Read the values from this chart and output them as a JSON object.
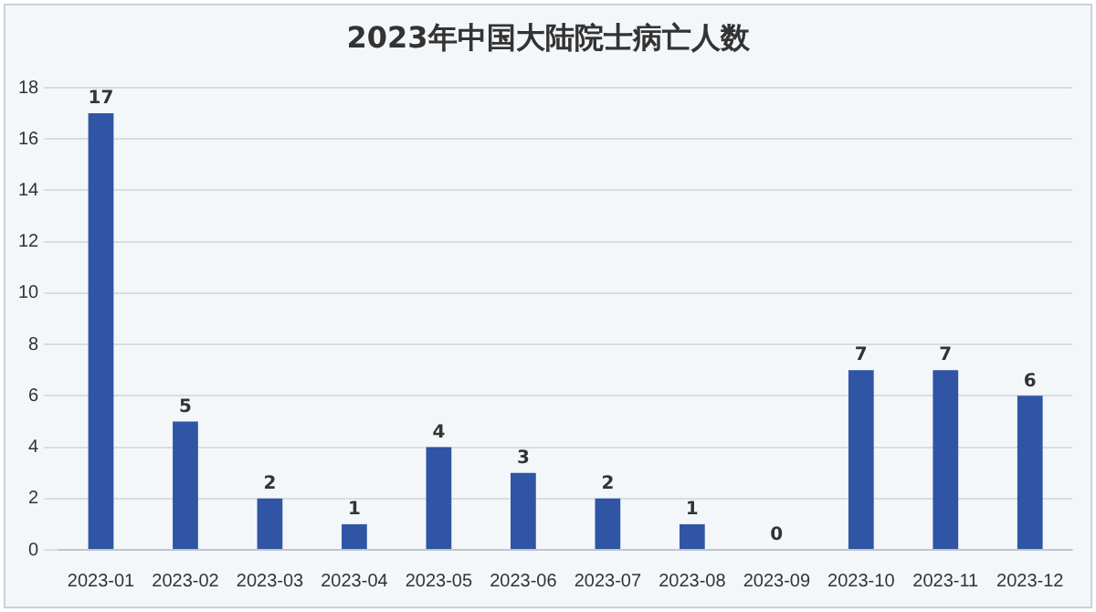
{
  "chart_data": {
    "type": "bar",
    "title": "2023年中国大陆院士病亡人数",
    "categories": [
      "2023-01",
      "2023-02",
      "2023-03",
      "2023-04",
      "2023-05",
      "2023-06",
      "2023-07",
      "2023-08",
      "2023-09",
      "2023-10",
      "2023-11",
      "2023-12"
    ],
    "values": [
      17,
      5,
      2,
      1,
      4,
      3,
      2,
      1,
      0,
      7,
      7,
      6
    ],
    "color": "#2f55a4",
    "ylim": [
      0,
      18
    ],
    "yticks": [
      0,
      2,
      4,
      6,
      8,
      10,
      12,
      14,
      16,
      18
    ],
    "grid": "y",
    "data_labels": true,
    "legend": false
  }
}
